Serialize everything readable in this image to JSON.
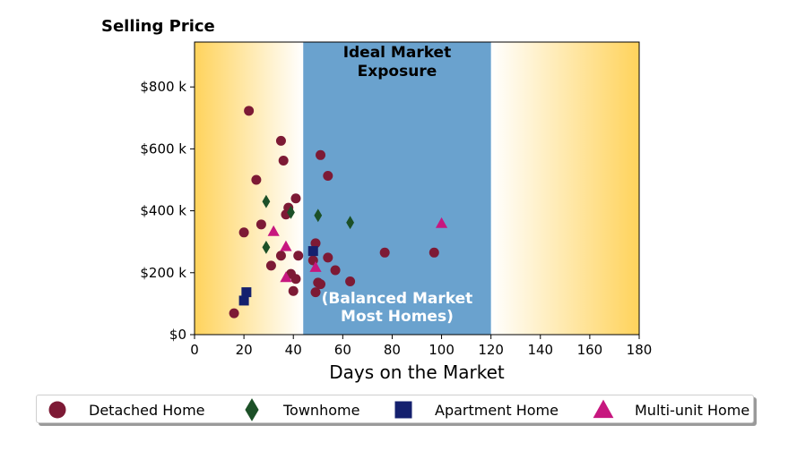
{
  "chart_data": {
    "type": "scatter",
    "title": "Selling Price",
    "xlabel": "Days on the Market",
    "ylabel": "",
    "xlim": [
      0,
      180
    ],
    "ylim": [
      0,
      945000
    ],
    "x_ticks": [
      0,
      20,
      40,
      60,
      80,
      100,
      120,
      140,
      160,
      180
    ],
    "x_tick_labels": [
      "0",
      "20",
      "40",
      "60",
      "80",
      "100",
      "120",
      "140",
      "160",
      "180"
    ],
    "y_ticks": [
      0,
      200000,
      400000,
      600000,
      800000
    ],
    "y_tick_labels": [
      "$0",
      "$200 k",
      "$400 k",
      "$600 k",
      "$800 k"
    ],
    "grid": false,
    "legend_position": "bottom",
    "background_gradient_color": "#FFD35C",
    "band": {
      "x_range": [
        44,
        120
      ],
      "color": "#6AA2CE",
      "top_label": "Ideal Market\nExposure",
      "bottom_label": "(Balanced Market\nMost Homes)"
    },
    "series": [
      {
        "name": "Detached Home",
        "marker": "circle",
        "color": "#7D1A35",
        "points": [
          [
            22,
            723000
          ],
          [
            35,
            626000
          ],
          [
            36,
            562000
          ],
          [
            25,
            500000
          ],
          [
            51,
            580000
          ],
          [
            54,
            513000
          ],
          [
            41,
            440000
          ],
          [
            38,
            410000
          ],
          [
            37,
            388000
          ],
          [
            27,
            356000
          ],
          [
            20,
            330000
          ],
          [
            49,
            295000
          ],
          [
            35,
            255000
          ],
          [
            42,
            255000
          ],
          [
            31,
            223000
          ],
          [
            48,
            240000
          ],
          [
            54,
            249000
          ],
          [
            57,
            208000
          ],
          [
            39,
            196000
          ],
          [
            41,
            180000
          ],
          [
            50,
            168000
          ],
          [
            51,
            163000
          ],
          [
            63,
            172000
          ],
          [
            40,
            141000
          ],
          [
            49,
            137000
          ],
          [
            16,
            69000
          ],
          [
            77,
            265000
          ],
          [
            97,
            265000
          ]
        ]
      },
      {
        "name": "Townhome",
        "marker": "diamond",
        "color": "#1C5027",
        "points": [
          [
            29,
            430000
          ],
          [
            39,
            395000
          ],
          [
            50,
            385000
          ],
          [
            63,
            362000
          ],
          [
            29,
            282000
          ]
        ]
      },
      {
        "name": "Apartment Home",
        "marker": "square",
        "color": "#14206E",
        "points": [
          [
            48,
            270000
          ],
          [
            21,
            137000
          ],
          [
            20,
            110000
          ]
        ]
      },
      {
        "name": "Multi-unit Home",
        "marker": "triangle",
        "color": "#C7177F",
        "points": [
          [
            32,
            334000
          ],
          [
            37,
            285000
          ],
          [
            49,
            218000
          ],
          [
            37,
            185000
          ],
          [
            100,
            360000
          ]
        ]
      }
    ]
  }
}
